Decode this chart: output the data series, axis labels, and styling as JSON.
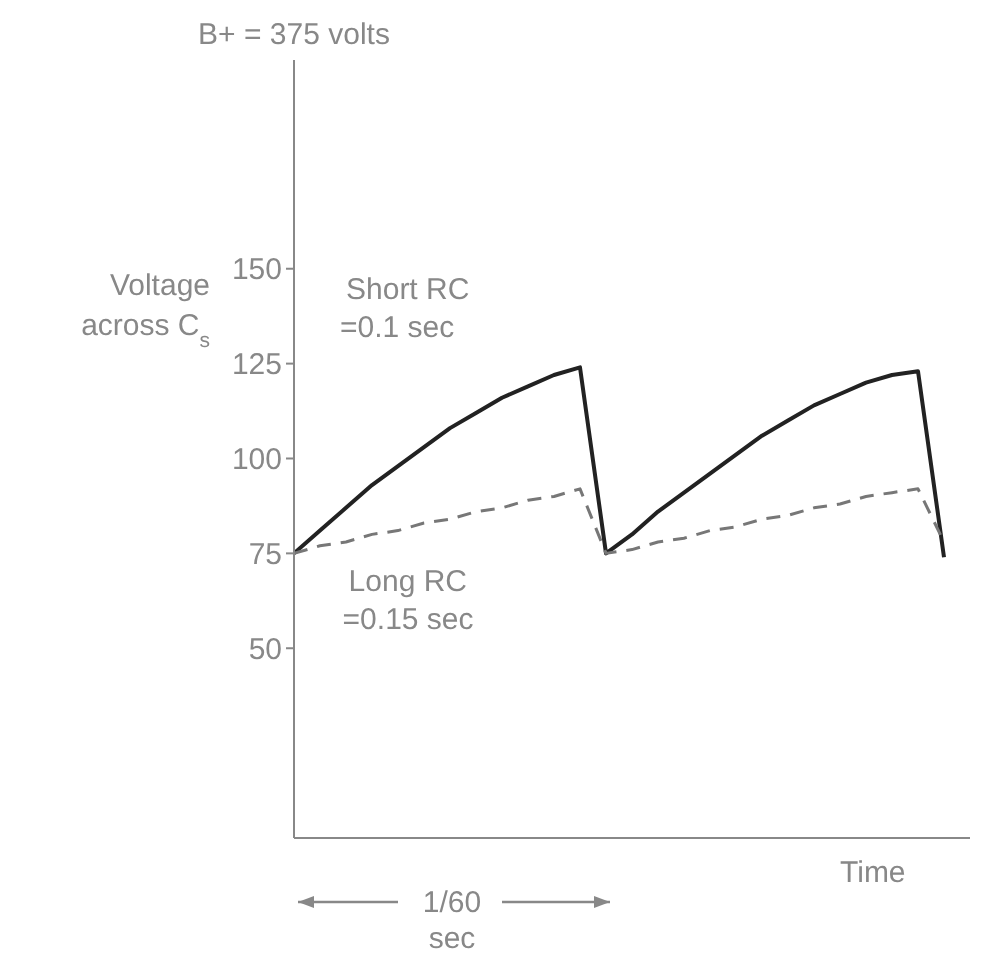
{
  "chart_data": {
    "type": "line",
    "xlabel": "Time",
    "ylabel": "Voltage across C$_{s}$",
    "categories": [
      null,
      null,
      null,
      null,
      null,
      null,
      null,
      null,
      null,
      null,
      null,
      null,
      null,
      null,
      null,
      null,
      null,
      null,
      null,
      null,
      null,
      null,
      null,
      null,
      null,
      null
    ],
    "series": [
      {
        "name": "Short RC\n=0.1 sec",
        "color": "#222222",
        "line_style": "solid",
        "values": [
          75,
          81,
          87,
          93,
          98,
          103,
          108,
          112,
          116,
          119,
          122,
          124,
          75,
          80,
          86,
          91,
          96,
          101,
          106,
          110,
          114,
          117,
          120,
          122,
          123,
          74
        ]
      },
      {
        "name": "Long RC\n=0.15 sec",
        "color": "#777777",
        "line_style": "dashed",
        "values": [
          75,
          77,
          78,
          80,
          81,
          83,
          84,
          86,
          87,
          89,
          90,
          92,
          75,
          76,
          78,
          79,
          81,
          82,
          84,
          85,
          87,
          88,
          90,
          91,
          92,
          78
        ]
      }
    ],
    "ylim": [
      0,
      205
    ],
    "yticks": [
      50,
      75,
      100,
      125,
      150
    ],
    "tick_labels": "y",
    "marker": "none",
    "annotations": [
      "B+ = 375 volts",
      "1/60 sec"
    ]
  }
}
